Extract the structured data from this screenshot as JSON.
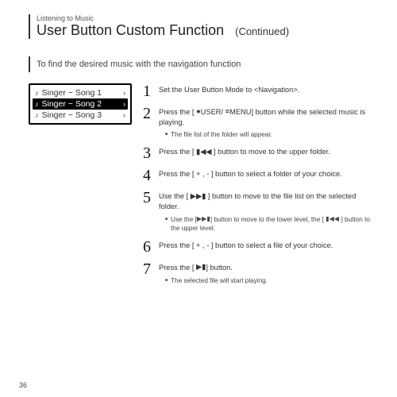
{
  "header": {
    "breadcrumb": "Listening to Music",
    "title": "User Button Custom Function",
    "continued": "(Continued)"
  },
  "subheading": "To find the desired music with the navigation function",
  "device_list": {
    "rows": [
      {
        "label": "Singer − Song 1",
        "selected": false
      },
      {
        "label": "Singer − Song 2",
        "selected": true
      },
      {
        "label": "Singer − Song 3",
        "selected": false
      }
    ]
  },
  "icons": {
    "record": "●",
    "menu_bars": "≡",
    "prev": "▮◀◀",
    "next": "▶▶▮",
    "play": "▶▮"
  },
  "steps": [
    {
      "n": "1",
      "text_pre": "Set the User Button Mode to <Navigation>.",
      "subs": []
    },
    {
      "n": "2",
      "text_parts": [
        "Press the [  ",
        "USER/  ",
        "MENU] button while the selected music is playing."
      ],
      "icon_slots": [
        "record",
        "menu_bars"
      ],
      "subs": [
        "The file list of the folder will appear."
      ]
    },
    {
      "n": "3",
      "text_parts": [
        "Press the [ ",
        " ] button to move to the upper folder."
      ],
      "icon_slots": [
        "prev"
      ],
      "subs": []
    },
    {
      "n": "4",
      "text_pre": "Press the [ + , - ] button to select a folder of your choice.",
      "subs": []
    },
    {
      "n": "5",
      "text_parts": [
        "Use the [ ",
        " ] button to move to the file list on the selected folder."
      ],
      "icon_slots": [
        "next"
      ],
      "subs_parts": [
        [
          "Use the  [",
          "] button to move to the lower level, the [   ",
          " ] button to the upper level."
        ]
      ],
      "subs_icons": [
        [
          "next",
          "prev"
        ]
      ]
    },
    {
      "n": "6",
      "text_pre": "Press the [ + , - ] button to select a file of your choice.",
      "subs": []
    },
    {
      "n": "7",
      "text_parts": [
        "Press the [  ",
        "] button."
      ],
      "icon_slots": [
        "play"
      ],
      "subs": [
        "The selected file will start playing."
      ]
    }
  ],
  "page_number": "36",
  "colors": {
    "text": "#333333",
    "bg": "#ffffff",
    "device_border": "#000000",
    "sel_bg": "#000000",
    "sel_fg": "#ffffff"
  }
}
